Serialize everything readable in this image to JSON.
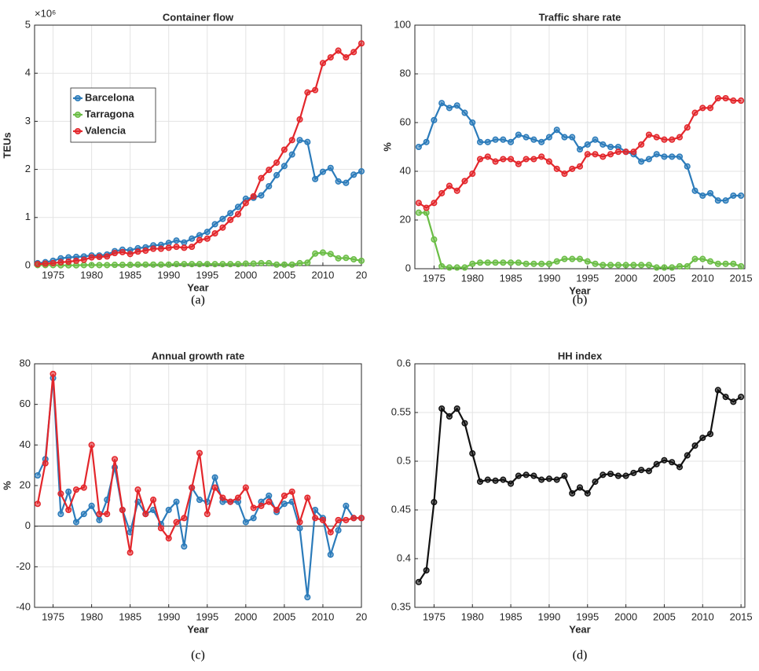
{
  "chart_data": [
    {
      "type": "line",
      "title": "Container flow",
      "x_label": "Year",
      "y_label": "TEUs",
      "caption": "(a)",
      "y_exponent": "×10⁶",
      "x": [
        1973,
        1974,
        1975,
        1976,
        1977,
        1978,
        1979,
        1980,
        1981,
        1982,
        1983,
        1984,
        1985,
        1986,
        1987,
        1988,
        1989,
        1990,
        1991,
        1992,
        1993,
        1994,
        1995,
        1996,
        1997,
        1998,
        1999,
        2000,
        2001,
        2002,
        2003,
        2004,
        2005,
        2006,
        2007,
        2008,
        2009,
        2010,
        2011,
        2012,
        2013,
        2014,
        2015
      ],
      "series": [
        {
          "name": "Barcelona",
          "color": "#2b7bba",
          "values": [
            50000,
            70000,
            100000,
            150000,
            170000,
            180000,
            190000,
            210000,
            210000,
            230000,
            300000,
            330000,
            320000,
            360000,
            380000,
            420000,
            430000,
            470000,
            520000,
            480000,
            560000,
            630000,
            700000,
            860000,
            970000,
            1090000,
            1220000,
            1390000,
            1410000,
            1460000,
            1650000,
            1880000,
            2070000,
            2310000,
            2610000,
            2570000,
            1800000,
            1950000,
            2030000,
            1750000,
            1720000,
            1890000,
            1960000
          ]
        },
        {
          "name": "Tarragona",
          "color": "#6abd45",
          "values": [
            10000,
            10000,
            10000,
            5000,
            5000,
            5000,
            10000,
            10000,
            10000,
            10000,
            15000,
            15000,
            15000,
            20000,
            20000,
            20000,
            20000,
            20000,
            30000,
            30000,
            30000,
            30000,
            30000,
            30000,
            30000,
            30000,
            30000,
            40000,
            40000,
            50000,
            50000,
            20000,
            20000,
            20000,
            50000,
            60000,
            250000,
            270000,
            240000,
            150000,
            160000,
            130000,
            100000
          ]
        },
        {
          "name": "Valencia",
          "color": "#e3262b",
          "values": [
            30000,
            40000,
            50000,
            70000,
            80000,
            100000,
            120000,
            170000,
            180000,
            190000,
            260000,
            280000,
            240000,
            290000,
            310000,
            350000,
            350000,
            370000,
            390000,
            370000,
            390000,
            530000,
            560000,
            670000,
            790000,
            950000,
            1070000,
            1300000,
            1440000,
            1820000,
            1990000,
            2140000,
            2410000,
            2610000,
            3040000,
            3600000,
            3650000,
            4210000,
            4330000,
            4470000,
            4330000,
            4440000,
            4620000
          ]
        }
      ],
      "xlim": [
        1972.6,
        2015
      ],
      "ylim": [
        0,
        5000000
      ],
      "xticks": [
        1975,
        1980,
        1985,
        1990,
        1995,
        2000,
        2005,
        2010,
        {
          "value": 2015,
          "label": "20"
        }
      ],
      "yticks": [
        0,
        {
          "value": 1000000,
          "label": "1"
        },
        {
          "value": 2000000,
          "label": "2"
        },
        {
          "value": 3000000,
          "label": "3"
        },
        {
          "value": 4000000,
          "label": "4"
        },
        {
          "value": 5000000,
          "label": "5"
        }
      ],
      "grid": true,
      "legend": "upper left"
    },
    {
      "type": "line",
      "title": "Traffic share rate",
      "x_label": "Year",
      "y_label": "%",
      "caption": "(b)",
      "x": [
        1973,
        1974,
        1975,
        1976,
        1977,
        1978,
        1979,
        1980,
        1981,
        1982,
        1983,
        1984,
        1985,
        1986,
        1987,
        1988,
        1989,
        1990,
        1991,
        1992,
        1993,
        1994,
        1995,
        1996,
        1997,
        1998,
        1999,
        2000,
        2001,
        2002,
        2003,
        2004,
        2005,
        2006,
        2007,
        2008,
        2009,
        2010,
        2011,
        2012,
        2013,
        2014,
        2015
      ],
      "series": [
        {
          "name": "Barcelona",
          "color": "#2b7bba",
          "values": [
            50,
            52,
            61,
            68,
            66,
            67,
            64,
            60,
            52,
            52,
            53,
            53,
            52,
            55,
            54,
            53,
            52,
            54,
            57,
            54,
            54,
            49,
            51,
            53,
            51,
            50,
            50,
            48,
            47,
            44,
            45,
            47,
            46,
            46,
            46,
            42,
            32,
            30,
            31,
            28,
            28,
            30,
            30
          ]
        },
        {
          "name": "Tarragona",
          "color": "#6abd45",
          "values": [
            23,
            23,
            12,
            1,
            0.5,
            0.5,
            0.5,
            2,
            2.5,
            2.5,
            2.5,
            2.5,
            2.5,
            2.5,
            2,
            2,
            2,
            2,
            3,
            4,
            4,
            4,
            3,
            2,
            1.5,
            1.5,
            1.5,
            1.5,
            1.5,
            1.5,
            1.5,
            0.5,
            0.5,
            0.5,
            1,
            1,
            4,
            4,
            3,
            2,
            2,
            2,
            1
          ]
        },
        {
          "name": "Valencia",
          "color": "#e3262b",
          "values": [
            27,
            25,
            27,
            31,
            34,
            32,
            36,
            39,
            45,
            46,
            44,
            45,
            45,
            43,
            45,
            45,
            46,
            44,
            41,
            39,
            41,
            42,
            47,
            47,
            46,
            47,
            48,
            48,
            48,
            51,
            55,
            54,
            53,
            53,
            54,
            58,
            64,
            66,
            66,
            70,
            70,
            69,
            69
          ]
        }
      ],
      "xlim": [
        1972.5,
        2015.5
      ],
      "ylim": [
        0,
        100
      ],
      "xticks": [
        1975,
        1980,
        1985,
        1990,
        1995,
        2000,
        2005,
        2010,
        2015
      ],
      "yticks": [
        0,
        20,
        40,
        60,
        80,
        100
      ],
      "grid": true
    },
    {
      "type": "line",
      "title": "Annual growth rate",
      "x_label": "Year",
      "y_label": "%",
      "caption": "(c)",
      "x": [
        1973,
        1974,
        1975,
        1976,
        1977,
        1978,
        1979,
        1980,
        1981,
        1982,
        1983,
        1984,
        1985,
        1986,
        1987,
        1988,
        1989,
        1990,
        1991,
        1992,
        1993,
        1994,
        1995,
        1996,
        1997,
        1998,
        1999,
        2000,
        2001,
        2002,
        2003,
        2004,
        2005,
        2006,
        2007,
        2008,
        2009,
        2010,
        2011,
        2012,
        2013,
        2014,
        2015
      ],
      "series": [
        {
          "name": "Barcelona",
          "color": "#2b7bba",
          "values": [
            25,
            33,
            73,
            6,
            17,
            2,
            6,
            10,
            3,
            13,
            29,
            8,
            -3,
            12,
            6,
            8,
            1,
            8,
            12,
            -10,
            19,
            13,
            12,
            24,
            12,
            12,
            12,
            2,
            4,
            12,
            15,
            7,
            11,
            12,
            -1,
            -35,
            8,
            4,
            -14,
            -2,
            10,
            4,
            4
          ]
        },
        {
          "name": "Valencia",
          "color": "#e3262b",
          "values": [
            11,
            31,
            75,
            16,
            8,
            18,
            19,
            40,
            6,
            6,
            33,
            8,
            -13,
            18,
            6,
            13,
            -1,
            -6,
            2,
            4,
            19,
            36,
            6,
            19,
            14,
            12,
            14,
            19,
            9,
            10,
            12,
            8,
            15,
            17,
            2,
            14,
            4,
            3,
            -3,
            3,
            3,
            4,
            4
          ]
        }
      ],
      "xlim": [
        1972.6,
        2015
      ],
      "ylim": [
        -40,
        80
      ],
      "xticks": [
        1975,
        1980,
        1985,
        1990,
        1995,
        2000,
        2005,
        2010,
        {
          "value": 2015,
          "label": "20"
        }
      ],
      "yticks": [
        -40,
        -20,
        0,
        20,
        40,
        60,
        80
      ],
      "grid": true,
      "zero_line": true
    },
    {
      "type": "line",
      "title": "HH index",
      "x_label": "Year",
      "caption": "(d)",
      "x": [
        1973,
        1974,
        1975,
        1976,
        1977,
        1978,
        1979,
        1980,
        1981,
        1982,
        1983,
        1984,
        1985,
        1986,
        1987,
        1988,
        1989,
        1990,
        1991,
        1992,
        1993,
        1994,
        1995,
        1996,
        1997,
        1998,
        1999,
        2000,
        2001,
        2002,
        2003,
        2004,
        2005,
        2006,
        2007,
        2008,
        2009,
        2010,
        2011,
        2012,
        2013,
        2014,
        2015
      ],
      "series": [
        {
          "color": "#111111",
          "values": [
            0.376,
            0.388,
            0.458,
            0.554,
            0.546,
            0.554,
            0.539,
            0.508,
            0.479,
            0.481,
            0.48,
            0.481,
            0.477,
            0.485,
            0.486,
            0.485,
            0.481,
            0.482,
            0.481,
            0.485,
            0.467,
            0.473,
            0.467,
            0.479,
            0.486,
            0.487,
            0.485,
            0.485,
            0.488,
            0.491,
            0.49,
            0.497,
            0.501,
            0.499,
            0.494,
            0.506,
            0.516,
            0.524,
            0.528,
            0.573,
            0.566,
            0.561,
            0.566
          ]
        }
      ],
      "xlim": [
        1972.5,
        2015.5
      ],
      "ylim": [
        0.35,
        0.6
      ],
      "xticks": [
        1975,
        1980,
        1985,
        1990,
        1995,
        2000,
        2005,
        2010,
        2015
      ],
      "yticks": [
        0.35,
        0.4,
        0.45,
        0.5,
        0.55,
        0.6
      ],
      "grid": true
    }
  ]
}
